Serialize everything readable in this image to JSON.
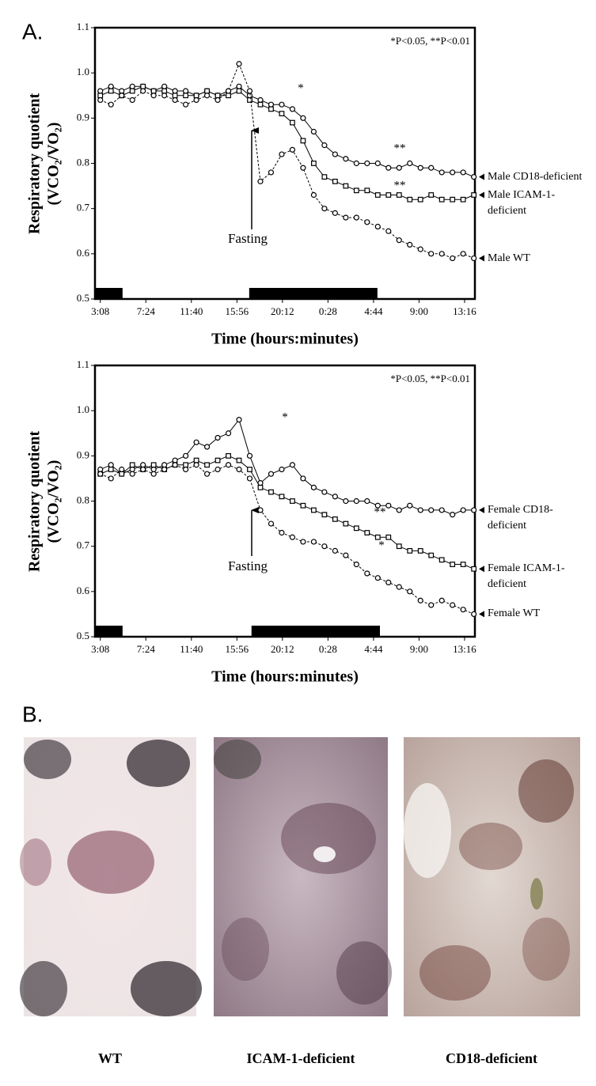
{
  "panel_labels": [
    "A.",
    "B."
  ],
  "chart_data": [
    {
      "type": "line",
      "xlabel": "Time (hours:minutes)",
      "ylabel": "Respiratory quotient (VCO₂/VO₂)",
      "annotation": "*P<0.05, **P<0.01",
      "fasting_label": "Fasting",
      "significance_marks": [
        "*",
        "**",
        "**"
      ],
      "x": [
        0,
        60,
        120,
        180,
        240,
        300,
        360,
        420,
        480,
        540,
        600,
        660,
        720,
        780,
        840,
        900,
        960,
        1020,
        1080,
        1140,
        1200,
        1260,
        1320,
        1380,
        1440,
        1500,
        1560,
        1620,
        1680,
        1740,
        1800,
        1860,
        1920,
        1980,
        2040,
        2100
      ],
      "xlim": [
        -30,
        2106
      ],
      "xticks": [
        {
          "value": 0,
          "label": "3:08"
        },
        {
          "value": 256,
          "label": "7:24"
        },
        {
          "value": 512,
          "label": "11:40"
        },
        {
          "value": 768,
          "label": "15:56"
        },
        {
          "value": 1024,
          "label": "20:12"
        },
        {
          "value": 1280,
          "label": "0:28"
        },
        {
          "value": 1536,
          "label": "4:44"
        },
        {
          "value": 1792,
          "label": "9:00"
        },
        {
          "value": 2048,
          "label": "13:16"
        }
      ],
      "ylim": [
        0.5,
        1.1
      ],
      "yticks": [
        0.5,
        0.6,
        0.7,
        0.8,
        0.9,
        {
          "value": 1,
          "label": "1.0"
        },
        1.1
      ],
      "dark_periods": [
        [
          -30,
          125
        ],
        [
          837,
          1558
        ]
      ],
      "series": [
        {
          "name": "Male CD18-deficient",
          "color": "#000000",
          "marker": "circle",
          "dashed": false,
          "values": [
            0.96,
            0.97,
            0.96,
            0.97,
            0.97,
            0.96,
            0.97,
            0.96,
            0.96,
            0.95,
            0.96,
            0.95,
            0.96,
            0.97,
            0.95,
            0.94,
            0.93,
            0.93,
            0.92,
            0.9,
            0.87,
            0.84,
            0.82,
            0.81,
            0.8,
            0.8,
            0.8,
            0.79,
            0.79,
            0.8,
            0.79,
            0.79,
            0.78,
            0.78,
            0.78,
            0.77
          ]
        },
        {
          "name": "Male ICAM-1-deficient",
          "color": "#000000",
          "marker": "square",
          "dashed": false,
          "values": [
            0.95,
            0.96,
            0.95,
            0.96,
            0.97,
            0.96,
            0.96,
            0.95,
            0.95,
            0.95,
            0.96,
            0.95,
            0.95,
            0.96,
            0.94,
            0.93,
            0.92,
            0.91,
            0.89,
            0.85,
            0.8,
            0.77,
            0.76,
            0.75,
            0.74,
            0.74,
            0.73,
            0.73,
            0.73,
            0.72,
            0.72,
            0.73,
            0.72,
            0.72,
            0.72,
            0.73
          ]
        },
        {
          "name": "Male WT",
          "color": "#000000",
          "marker": "circle",
          "dashed": true,
          "values": [
            0.94,
            0.93,
            0.95,
            0.94,
            0.96,
            0.95,
            0.95,
            0.94,
            0.93,
            0.94,
            0.95,
            0.94,
            0.96,
            1.02,
            0.96,
            0.76,
            0.78,
            0.82,
            0.83,
            0.79,
            0.73,
            0.7,
            0.69,
            0.68,
            0.68,
            0.67,
            0.66,
            0.65,
            0.63,
            0.62,
            0.61,
            0.6,
            0.6,
            0.59,
            0.6,
            0.59
          ]
        }
      ]
    },
    {
      "type": "line",
      "xlabel": "Time (hours:minutes)",
      "ylabel": "Respiratory quotient (VCO₂/VO₂)",
      "annotation": "*P<0.05, **P<0.01",
      "fasting_label": "Fasting",
      "significance_marks": [
        "*",
        "**",
        "*"
      ],
      "x": [
        0,
        60,
        120,
        180,
        240,
        300,
        360,
        420,
        480,
        540,
        600,
        660,
        720,
        780,
        840,
        900,
        960,
        1020,
        1080,
        1140,
        1200,
        1260,
        1320,
        1380,
        1440,
        1500,
        1560,
        1620,
        1680,
        1740,
        1800,
        1860,
        1920,
        1980,
        2040,
        2100
      ],
      "xlim": [
        -30,
        2106
      ],
      "xticks": [
        {
          "value": 0,
          "label": "3:08"
        },
        {
          "value": 256,
          "label": "7:24"
        },
        {
          "value": 512,
          "label": "11:40"
        },
        {
          "value": 768,
          "label": "15:56"
        },
        {
          "value": 1024,
          "label": "20:12"
        },
        {
          "value": 1280,
          "label": "0:28"
        },
        {
          "value": 1536,
          "label": "4:44"
        },
        {
          "value": 1792,
          "label": "9:00"
        },
        {
          "value": 2048,
          "label": "13:16"
        }
      ],
      "ylim": [
        0.5,
        1.1
      ],
      "yticks": [
        0.5,
        0.6,
        0.7,
        0.8,
        0.9,
        {
          "value": 1,
          "label": "1.0"
        },
        1.1
      ],
      "dark_periods": [
        [
          -30,
          125
        ],
        [
          850,
          1572
        ]
      ],
      "series": [
        {
          "name": "Female CD18-deficient",
          "color": "#000000",
          "marker": "circle",
          "dashed": false,
          "values": [
            0.87,
            0.88,
            0.86,
            0.87,
            0.88,
            0.87,
            0.88,
            0.89,
            0.9,
            0.93,
            0.92,
            0.94,
            0.95,
            0.98,
            0.9,
            0.84,
            0.86,
            0.87,
            0.88,
            0.85,
            0.83,
            0.82,
            0.81,
            0.8,
            0.8,
            0.8,
            0.79,
            0.79,
            0.78,
            0.79,
            0.78,
            0.78,
            0.78,
            0.77,
            0.78,
            0.78
          ]
        },
        {
          "name": "Female ICAM-1-deficient",
          "color": "#000000",
          "marker": "square",
          "dashed": false,
          "values": [
            0.86,
            0.87,
            0.86,
            0.88,
            0.87,
            0.88,
            0.87,
            0.88,
            0.88,
            0.89,
            0.88,
            0.89,
            0.9,
            0.89,
            0.87,
            0.83,
            0.82,
            0.81,
            0.8,
            0.79,
            0.78,
            0.77,
            0.76,
            0.75,
            0.74,
            0.73,
            0.72,
            0.72,
            0.7,
            0.69,
            0.69,
            0.68,
            0.67,
            0.66,
            0.66,
            0.65
          ]
        },
        {
          "name": "Female WT",
          "color": "#000000",
          "marker": "circle",
          "dashed": true,
          "values": [
            0.86,
            0.85,
            0.87,
            0.86,
            0.87,
            0.86,
            0.87,
            0.88,
            0.87,
            0.88,
            0.86,
            0.87,
            0.88,
            0.87,
            0.85,
            0.78,
            0.75,
            0.73,
            0.72,
            0.71,
            0.71,
            0.7,
            0.69,
            0.68,
            0.66,
            0.64,
            0.63,
            0.62,
            0.61,
            0.6,
            0.58,
            0.57,
            0.58,
            0.57,
            0.56,
            0.55
          ]
        }
      ]
    }
  ],
  "micrographs": [
    {
      "label": "WT"
    },
    {
      "label": "ICAM-1-deficient"
    },
    {
      "label": "CD18-deficient"
    }
  ]
}
